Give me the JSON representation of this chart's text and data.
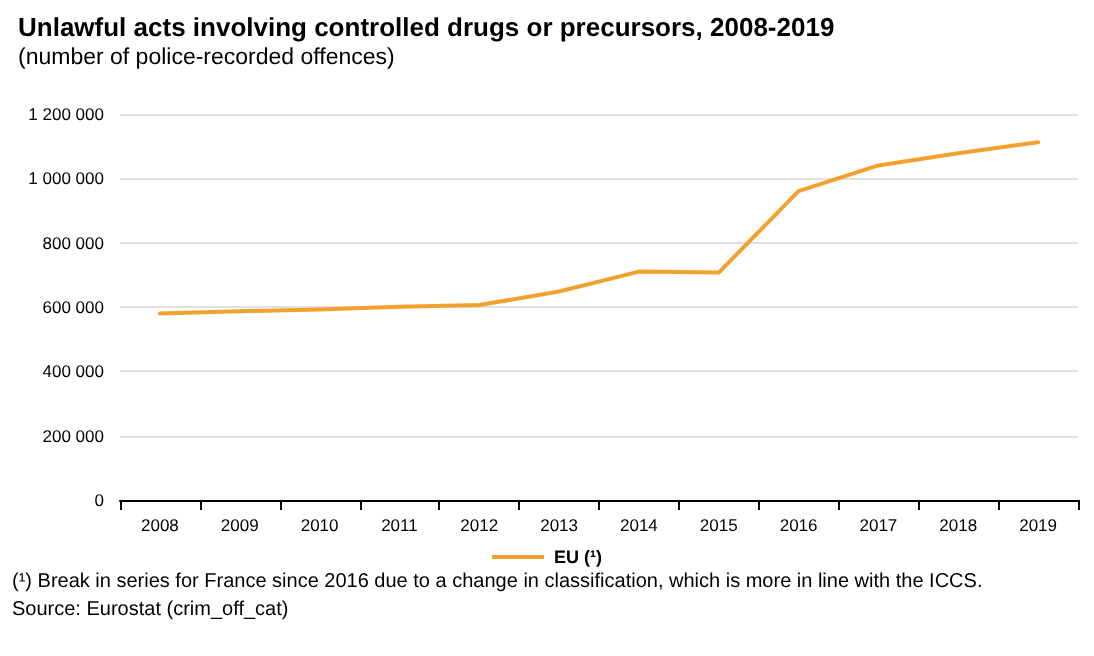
{
  "chart_data": {
    "type": "line",
    "title": "Unlawful acts involving controlled drugs or precursors, 2008-2019",
    "subtitle": "(number of police-recorded offences)",
    "categories": [
      "2008",
      "2009",
      "2010",
      "2011",
      "2012",
      "2013",
      "2014",
      "2015",
      "2016",
      "2017",
      "2018",
      "2019"
    ],
    "series": [
      {
        "name": "EU (¹)",
        "color": "#f2a12e",
        "values": [
          580000,
          587000,
          592000,
          601000,
          606000,
          648000,
          710000,
          707000,
          960000,
          1040000,
          1078000,
          1112000
        ]
      }
    ],
    "ylim": [
      0,
      1200000
    ],
    "yticks": [
      {
        "value": 0,
        "label": "0"
      },
      {
        "value": 200000,
        "label": "200 000"
      },
      {
        "value": 400000,
        "label": "400 000"
      },
      {
        "value": 600000,
        "label": "600 000"
      },
      {
        "value": 800000,
        "label": "800 000"
      },
      {
        "value": 1000000,
        "label": "1 000 000"
      },
      {
        "value": 1200000,
        "label": "1 200 000"
      }
    ],
    "grid": "y",
    "legend": "bottom",
    "marker": "none",
    "line_style": "solid",
    "annotations": [
      "(¹) Break in series for France since 2016 due to a change in classification, which is more in line with the ICCS.",
      "Source: Eurostat (crim_off_cat)"
    ]
  }
}
